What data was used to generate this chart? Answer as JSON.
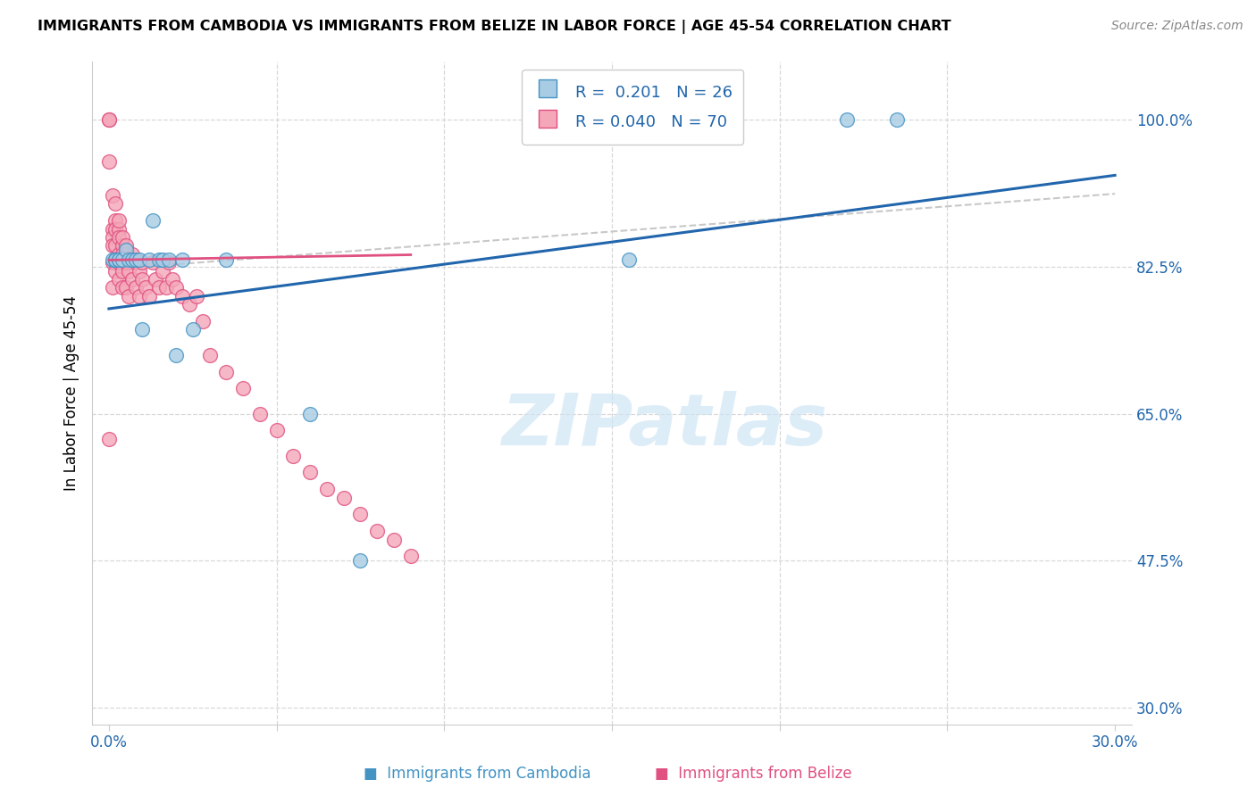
{
  "title": "IMMIGRANTS FROM CAMBODIA VS IMMIGRANTS FROM BELIZE IN LABOR FORCE | AGE 45-54 CORRELATION CHART",
  "source": "Source: ZipAtlas.com",
  "ylabel": "In Labor Force | Age 45-54",
  "xlim": [
    -0.005,
    0.305
  ],
  "ylim": [
    0.28,
    1.07
  ],
  "xticks": [
    0.0,
    0.05,
    0.1,
    0.15,
    0.2,
    0.25,
    0.3
  ],
  "xticklabels": [
    "0.0%",
    "",
    "",
    "",
    "",
    "",
    "30.0%"
  ],
  "yticks_right": [
    1.0,
    0.825,
    0.65,
    0.475,
    0.3
  ],
  "yticks_right_labels": [
    "100.0%",
    "82.5%",
    "65.0%",
    "47.5%",
    "30.0%"
  ],
  "legend_label1": "Immigrants from Cambodia",
  "legend_label2": "Immigrants from Belize",
  "watermark": "ZIPatlas",
  "blue_fill": "#a8cce4",
  "blue_edge": "#4393c3",
  "pink_fill": "#f4a7b9",
  "pink_edge": "#e05080",
  "blue_line": "#2166ac",
  "pink_line": "#e05080",
  "dashed_line": "#c8c8c8",
  "cambodia_x": [
    0.001,
    0.002,
    0.002,
    0.003,
    0.003,
    0.004,
    0.005,
    0.006,
    0.007,
    0.008,
    0.009,
    0.01,
    0.012,
    0.013,
    0.015,
    0.016,
    0.018,
    0.02,
    0.022,
    0.025,
    0.035,
    0.06,
    0.075,
    0.155,
    0.22,
    0.235
  ],
  "cambodia_y": [
    0.833,
    0.833,
    0.833,
    0.833,
    0.833,
    0.833,
    0.845,
    0.833,
    0.833,
    0.833,
    0.833,
    0.75,
    0.833,
    0.88,
    0.833,
    0.833,
    0.833,
    0.72,
    0.833,
    0.75,
    0.833,
    0.65,
    0.475,
    0.833,
    1.0,
    1.0
  ],
  "belize_x": [
    0.0,
    0.0,
    0.0,
    0.0,
    0.001,
    0.001,
    0.001,
    0.001,
    0.001,
    0.002,
    0.002,
    0.002,
    0.002,
    0.002,
    0.003,
    0.003,
    0.003,
    0.003,
    0.003,
    0.004,
    0.004,
    0.004,
    0.004,
    0.005,
    0.005,
    0.005,
    0.006,
    0.006,
    0.006,
    0.007,
    0.007,
    0.008,
    0.008,
    0.009,
    0.009,
    0.01,
    0.01,
    0.011,
    0.012,
    0.013,
    0.014,
    0.015,
    0.016,
    0.017,
    0.018,
    0.019,
    0.02,
    0.022,
    0.024,
    0.026,
    0.028,
    0.03,
    0.035,
    0.04,
    0.045,
    0.05,
    0.055,
    0.06,
    0.065,
    0.07,
    0.075,
    0.08,
    0.085,
    0.09,
    0.001,
    0.002,
    0.003,
    0.004,
    0.005
  ],
  "belize_y": [
    1.0,
    1.0,
    0.95,
    0.62,
    0.87,
    0.86,
    0.85,
    0.83,
    0.8,
    0.88,
    0.87,
    0.85,
    0.83,
    0.82,
    0.87,
    0.86,
    0.84,
    0.83,
    0.81,
    0.85,
    0.84,
    0.82,
    0.8,
    0.84,
    0.83,
    0.8,
    0.83,
    0.82,
    0.79,
    0.84,
    0.81,
    0.83,
    0.8,
    0.82,
    0.79,
    0.83,
    0.81,
    0.8,
    0.79,
    0.83,
    0.81,
    0.8,
    0.82,
    0.8,
    0.83,
    0.81,
    0.8,
    0.79,
    0.78,
    0.79,
    0.76,
    0.72,
    0.7,
    0.68,
    0.65,
    0.63,
    0.6,
    0.58,
    0.56,
    0.55,
    0.53,
    0.51,
    0.5,
    0.48,
    0.91,
    0.9,
    0.88,
    0.86,
    0.85
  ]
}
